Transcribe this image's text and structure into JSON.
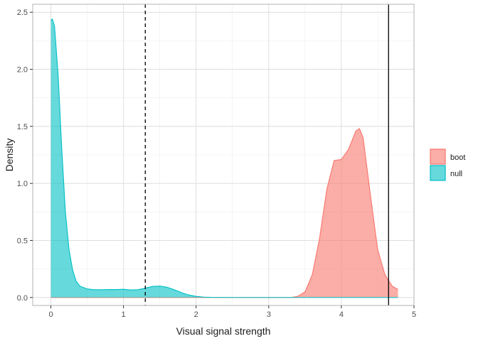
{
  "chart_data": {
    "type": "area",
    "title": "",
    "xlabel": "Visual signal strength",
    "ylabel": "Density",
    "xlim": [
      -0.25,
      5.0
    ],
    "ylim": [
      -0.07,
      2.57
    ],
    "x_ticks": [
      0,
      1,
      2,
      3,
      4,
      5
    ],
    "y_ticks": [
      0.0,
      0.5,
      1.0,
      1.5,
      2.0,
      2.5
    ],
    "x_tick_labels": [
      "0",
      "1",
      "2",
      "3",
      "4",
      "5"
    ],
    "y_tick_labels": [
      "0.0",
      "0.5",
      "1.0",
      "1.5",
      "2.0",
      "2.5"
    ],
    "grid": true,
    "legend_position": "right",
    "vlines": [
      {
        "x": 1.3,
        "style": "dashed",
        "color": "#000000"
      },
      {
        "x": 4.65,
        "style": "solid",
        "color": "#000000"
      }
    ],
    "series": [
      {
        "name": "boot",
        "line_color": "#F8766D",
        "fill_color": "#F8766D",
        "points": [
          [
            0.0,
            0.0
          ],
          [
            3.3,
            0.0
          ],
          [
            3.4,
            0.01
          ],
          [
            3.5,
            0.05
          ],
          [
            3.6,
            0.2
          ],
          [
            3.7,
            0.52
          ],
          [
            3.8,
            0.95
          ],
          [
            3.9,
            1.2
          ],
          [
            4.0,
            1.21
          ],
          [
            4.1,
            1.3
          ],
          [
            4.2,
            1.46
          ],
          [
            4.25,
            1.48
          ],
          [
            4.3,
            1.4
          ],
          [
            4.4,
            0.9
          ],
          [
            4.5,
            0.42
          ],
          [
            4.6,
            0.2
          ],
          [
            4.7,
            0.1
          ],
          [
            4.78,
            0.07
          ]
        ]
      },
      {
        "name": "null",
        "line_color": "#00BFC4",
        "fill_color": "#00BFC4",
        "points": [
          [
            0.0,
            2.43
          ],
          [
            0.02,
            2.44
          ],
          [
            0.05,
            2.38
          ],
          [
            0.1,
            1.95
          ],
          [
            0.15,
            1.3
          ],
          [
            0.2,
            0.75
          ],
          [
            0.25,
            0.42
          ],
          [
            0.3,
            0.24
          ],
          [
            0.35,
            0.14
          ],
          [
            0.4,
            0.1
          ],
          [
            0.5,
            0.075
          ],
          [
            0.6,
            0.068
          ],
          [
            0.7,
            0.068
          ],
          [
            0.8,
            0.07
          ],
          [
            0.9,
            0.07
          ],
          [
            1.0,
            0.072
          ],
          [
            1.1,
            0.066
          ],
          [
            1.2,
            0.068
          ],
          [
            1.3,
            0.082
          ],
          [
            1.4,
            0.097
          ],
          [
            1.5,
            0.1
          ],
          [
            1.6,
            0.09
          ],
          [
            1.7,
            0.068
          ],
          [
            1.8,
            0.042
          ],
          [
            1.9,
            0.022
          ],
          [
            2.0,
            0.01
          ],
          [
            2.1,
            0.004
          ],
          [
            2.2,
            0.001
          ],
          [
            2.5,
            0.0
          ],
          [
            3.0,
            0.0
          ],
          [
            3.5,
            0.0
          ],
          [
            4.0,
            0.0
          ],
          [
            4.5,
            0.0
          ],
          [
            4.78,
            0.0
          ]
        ]
      }
    ]
  }
}
